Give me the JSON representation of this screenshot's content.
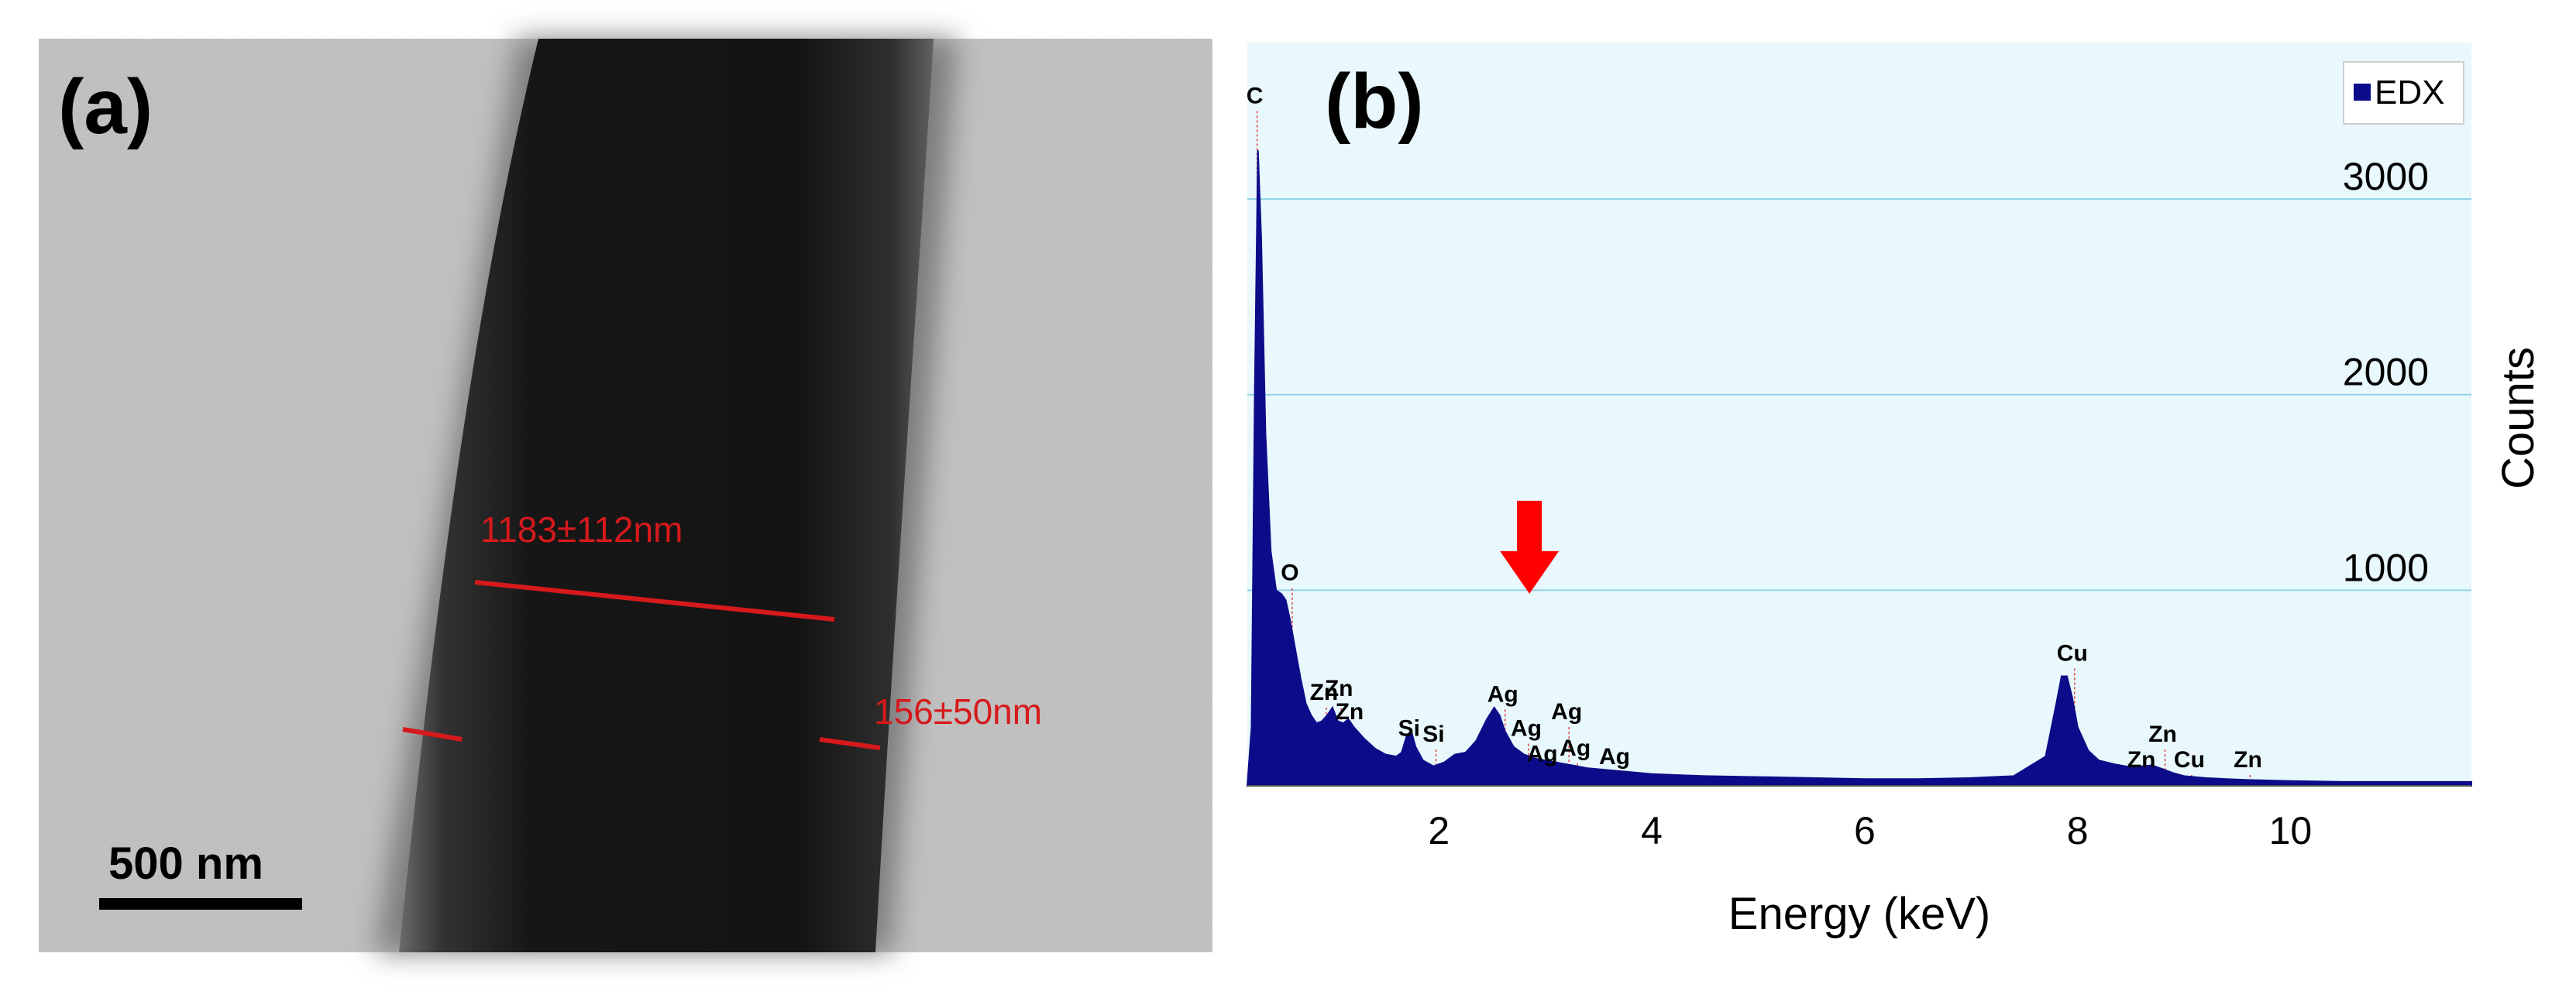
{
  "panels": {
    "a": {
      "label": "(a)",
      "scale_bar_label": "500 nm",
      "measurements": [
        {
          "label": "1183±112nm"
        },
        {
          "label": "156±50nm"
        }
      ],
      "colors": {
        "measurement": "#d6191b",
        "background": "#c9c9c9",
        "fiber": "#151515"
      }
    },
    "b": {
      "label": "(b)"
    }
  },
  "chart_data": {
    "type": "area",
    "title": "",
    "xlabel": "Energy (keV)",
    "ylabel": "Counts",
    "xlim": [
      0.2,
      11.7
    ],
    "ylim": [
      0,
      3800
    ],
    "x_ticks": [
      2,
      4,
      6,
      8,
      10
    ],
    "y_ticks": [
      1000,
      2000,
      3000
    ],
    "grid": "horizontal",
    "background": "#e8f8fd",
    "legend": {
      "position": "top-right",
      "entries": [
        "EDX"
      ]
    },
    "series": [
      {
        "name": "EDX",
        "color": "#0c0c8a",
        "x": [
          0.2,
          0.24,
          0.27,
          0.3,
          0.33,
          0.37,
          0.42,
          0.47,
          0.52,
          0.56,
          0.6,
          0.65,
          0.7,
          0.75,
          0.8,
          0.85,
          0.9,
          0.95,
          1.0,
          1.05,
          1.1,
          1.15,
          1.2,
          1.3,
          1.4,
          1.5,
          1.6,
          1.65,
          1.7,
          1.74,
          1.78,
          1.85,
          1.95,
          2.05,
          2.15,
          2.25,
          2.35,
          2.45,
          2.52,
          2.57,
          2.62,
          2.7,
          2.8,
          2.9,
          3.0,
          3.1,
          3.2,
          3.3,
          3.4,
          3.5,
          3.6,
          3.8,
          4.0,
          4.5,
          5.0,
          5.5,
          6.0,
          6.5,
          7.0,
          7.4,
          7.7,
          7.8,
          7.85,
          7.9,
          7.95,
          8.0,
          8.1,
          8.2,
          8.35,
          8.5,
          8.6,
          8.7,
          8.8,
          8.9,
          9.0,
          9.2,
          9.4,
          9.6,
          10.0,
          10.5,
          11.0,
          11.7
        ],
        "y": [
          0,
          300,
          2000,
          3250,
          2800,
          1800,
          1200,
          1000,
          980,
          950,
          850,
          700,
          550,
          420,
          360,
          320,
          330,
          360,
          400,
          330,
          320,
          340,
          300,
          240,
          190,
          160,
          150,
          170,
          260,
          280,
          200,
          130,
          100,
          120,
          160,
          170,
          230,
          340,
          400,
          360,
          280,
          200,
          160,
          140,
          130,
          120,
          110,
          100,
          90,
          85,
          80,
          70,
          60,
          50,
          45,
          40,
          35,
          35,
          40,
          50,
          150,
          420,
          560,
          560,
          450,
          300,
          180,
          130,
          110,
          95,
          100,
          105,
          85,
          65,
          50,
          40,
          35,
          30,
          25,
          20,
          20,
          20
        ]
      }
    ],
    "annotations": [
      {
        "text": "C",
        "x": 0.27,
        "y": 3490
      },
      {
        "text": "O",
        "x": 0.6,
        "y": 1050
      },
      {
        "text": "Zn",
        "x": 0.92,
        "y": 440
      },
      {
        "text": "Zn",
        "x": 1.06,
        "y": 460
      },
      {
        "text": "Zn",
        "x": 1.16,
        "y": 340
      },
      {
        "text": "Si",
        "x": 1.72,
        "y": 255
      },
      {
        "text": "Si",
        "x": 1.95,
        "y": 225
      },
      {
        "text": "Ag",
        "x": 2.6,
        "y": 430
      },
      {
        "text": "Ag",
        "x": 2.82,
        "y": 255
      },
      {
        "text": "Ag",
        "x": 3.2,
        "y": 340
      },
      {
        "text": "Ag",
        "x": 2.97,
        "y": 125
      },
      {
        "text": "Ag",
        "x": 3.28,
        "y": 155
      },
      {
        "text": "Ag",
        "x": 3.65,
        "y": 110
      },
      {
        "text": "Cu",
        "x": 7.95,
        "y": 640
      },
      {
        "text": "Zn",
        "x": 8.8,
        "y": 225
      },
      {
        "text": "Zn",
        "x": 8.6,
        "y": 95
      },
      {
        "text": "Cu",
        "x": 9.05,
        "y": 95
      },
      {
        "text": "Zn",
        "x": 9.6,
        "y": 95
      }
    ],
    "marker": {
      "type": "arrow-down",
      "x": 2.85,
      "y": 1200,
      "color": "#ff0000"
    }
  }
}
